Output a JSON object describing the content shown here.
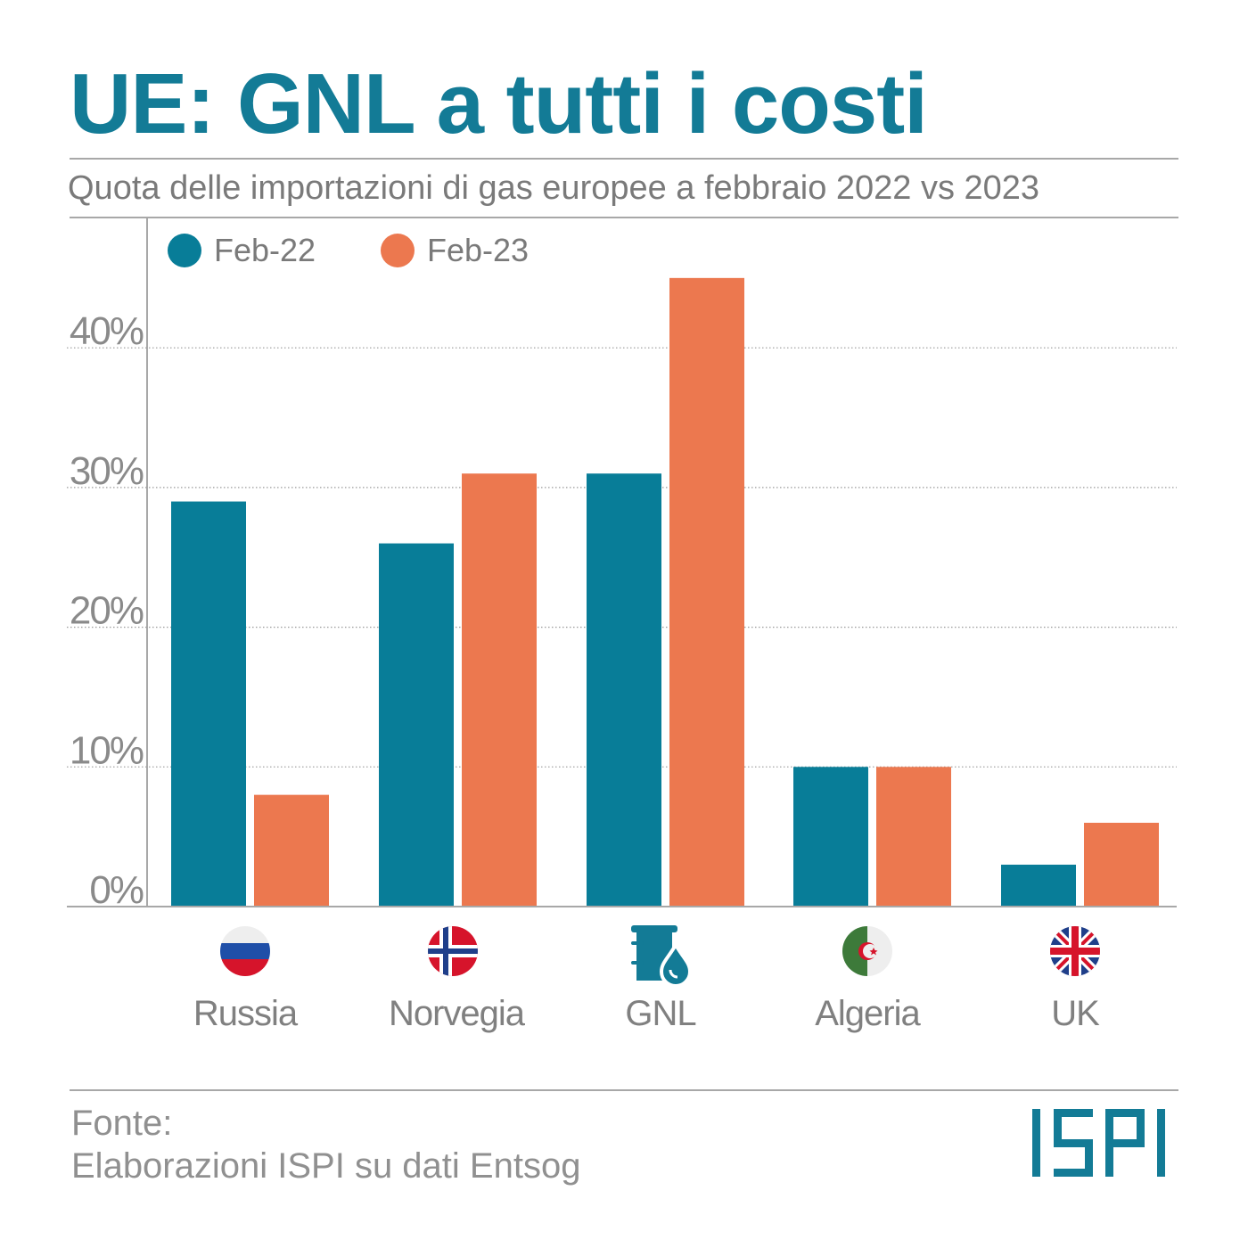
{
  "title": "UE: GNL a tutti i costi",
  "subtitle": "Quota delle importazioni di gas europee a febbraio 2022 vs 2023",
  "source_label": "Fonte:",
  "source_text": "Elaborazioni ISPI su dati Entsog",
  "logo": "ISPI",
  "colors": {
    "feb22": "#087d98",
    "feb23": "#ec784f",
    "accent": "#137b96"
  },
  "chart_data": {
    "type": "bar",
    "title": "UE: GNL a tutti i costi",
    "subtitle": "Quota delle importazioni di gas europee a febbraio 2022 vs 2023",
    "categories": [
      "Russia",
      "Norvegia",
      "GNL",
      "Algeria",
      "UK"
    ],
    "icons": [
      "russia-flag-icon",
      "norway-flag-icon",
      "lng-barrel-drop-icon",
      "algeria-flag-icon",
      "uk-flag-icon"
    ],
    "series": [
      {
        "name": "Feb-22",
        "values": [
          29,
          26,
          31,
          10,
          3
        ]
      },
      {
        "name": "Feb-23",
        "values": [
          8,
          31,
          45,
          10,
          6
        ]
      }
    ],
    "yticks": [
      0,
      10,
      20,
      30,
      40
    ],
    "ytick_labels": [
      "0%",
      "10%",
      "20%",
      "30%",
      "40%"
    ],
    "ylim": [
      0,
      48
    ],
    "grid": true,
    "legend_position": "top-left",
    "xlabel": "",
    "ylabel": ""
  }
}
